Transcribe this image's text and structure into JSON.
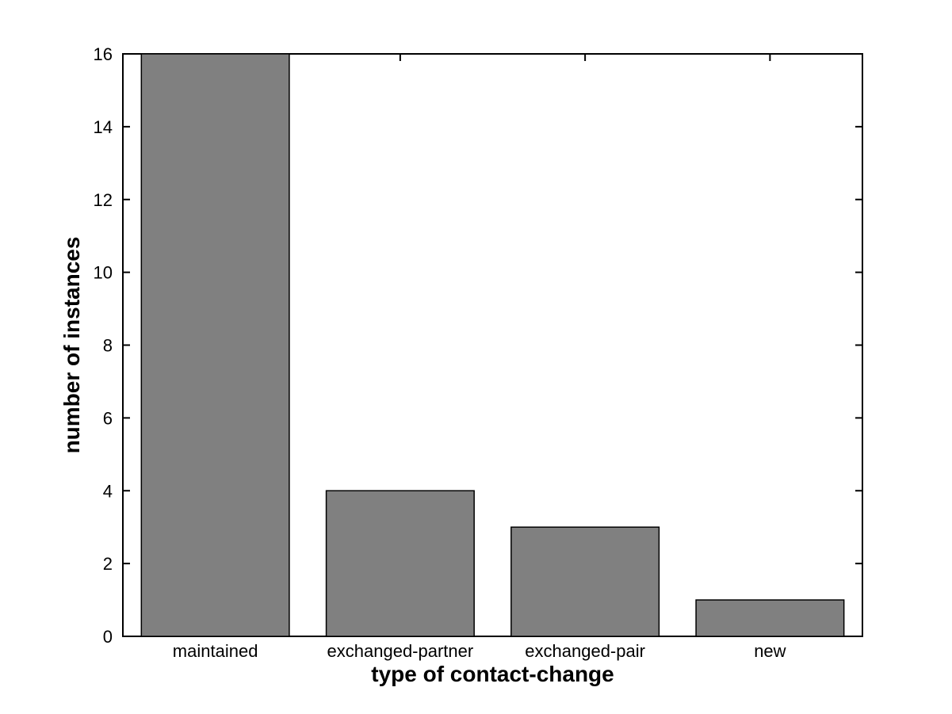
{
  "chart_data": {
    "type": "bar",
    "title": "",
    "categories": [
      "maintained",
      "exchanged-partner",
      "exchanged-pair",
      "new"
    ],
    "values": [
      16,
      4,
      3,
      1
    ],
    "xlabel": "type of contact-change",
    "ylabel": "number of instances",
    "ylim": [
      0,
      16
    ],
    "yticks": [
      0,
      2,
      4,
      6,
      8,
      10,
      12,
      14,
      16
    ],
    "bar_width_fraction": 0.8,
    "bar_fill_color": "#808080",
    "bar_edge_color": "#000000",
    "axis_color": "#000000",
    "background_color": "#ffffff",
    "grid": false,
    "legend": null,
    "tick_direction": "in"
  }
}
